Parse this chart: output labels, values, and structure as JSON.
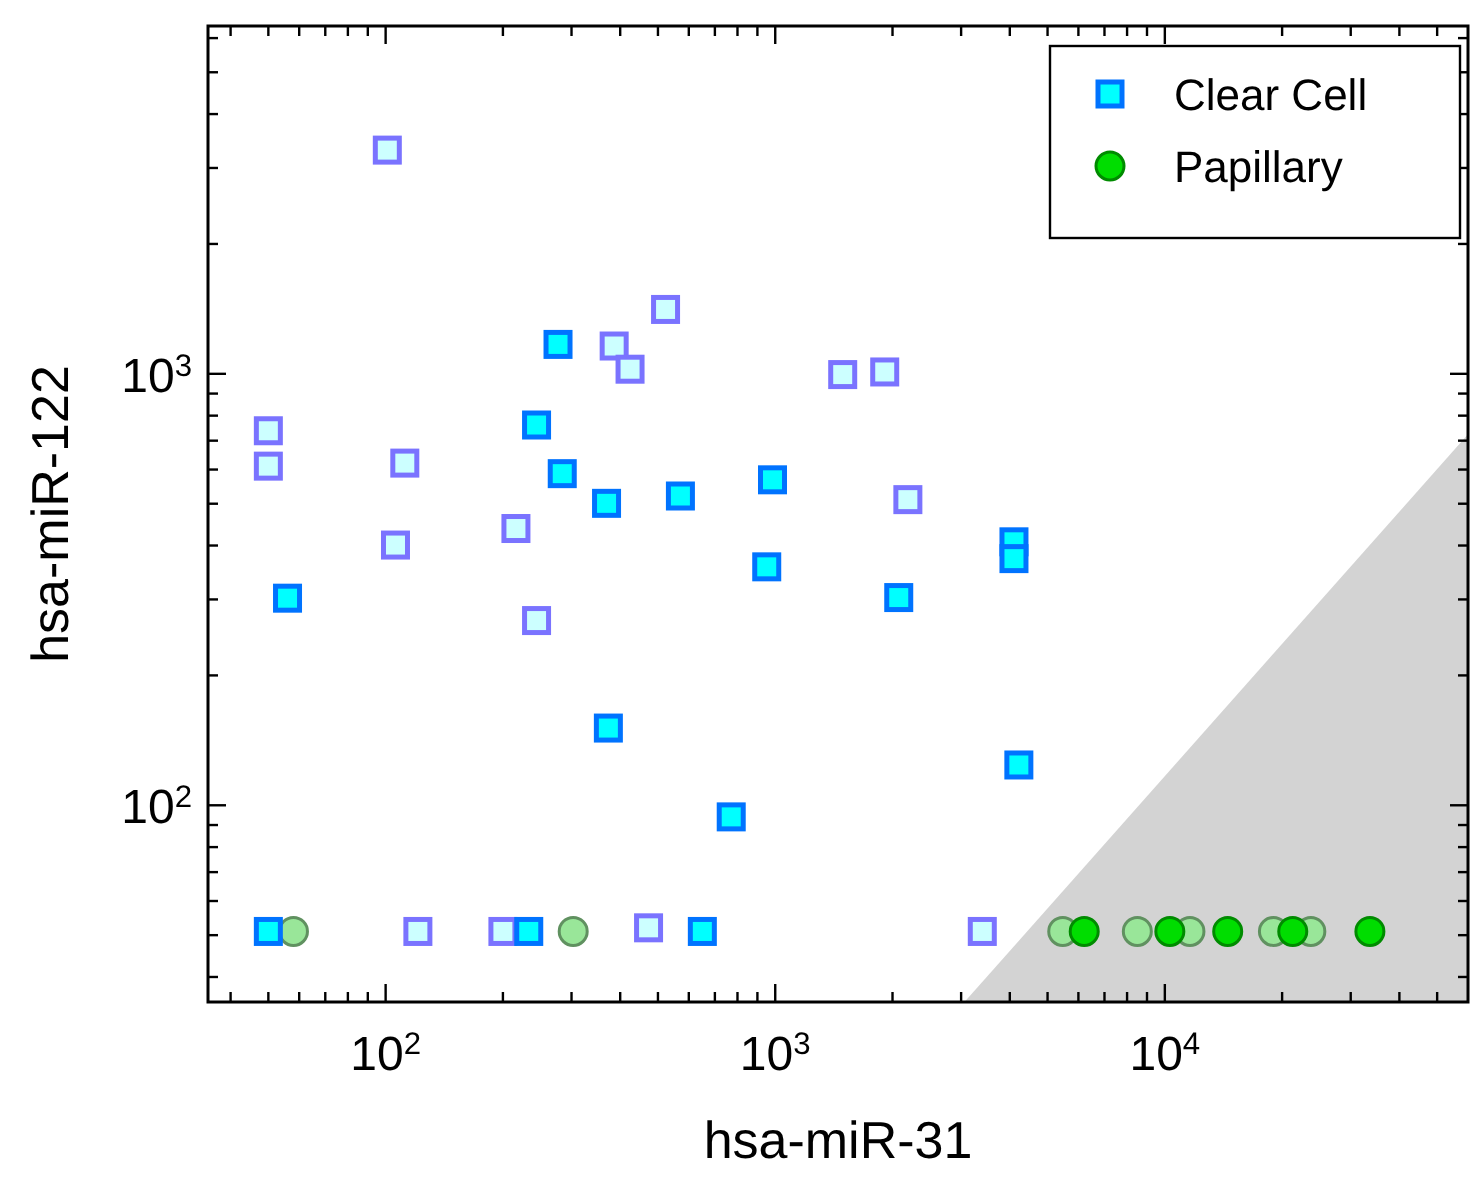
{
  "chart_data": {
    "type": "scatter",
    "xlabel": "hsa-miR-31",
    "ylabel": "hsa-miR-122",
    "log": "xy",
    "xlim": [
      35,
      60000
    ],
    "ylim": [
      35,
      6400
    ],
    "xticks": [
      {
        "value": 40,
        "label": null
      },
      {
        "value": 50,
        "label": null
      },
      {
        "value": 60,
        "label": null
      },
      {
        "value": 70,
        "label": null
      },
      {
        "value": 80,
        "label": null
      },
      {
        "value": 90,
        "label": null
      },
      {
        "value": 100,
        "label": "10$^{2}$"
      },
      {
        "value": 200,
        "label": null
      },
      {
        "value": 300,
        "label": null
      },
      {
        "value": 400,
        "label": null
      },
      {
        "value": 500,
        "label": null
      },
      {
        "value": 600,
        "label": null
      },
      {
        "value": 700,
        "label": null
      },
      {
        "value": 800,
        "label": null
      },
      {
        "value": 900,
        "label": null
      },
      {
        "value": 1000,
        "label": "10$^{3}$"
      },
      {
        "value": 2000,
        "label": null
      },
      {
        "value": 3000,
        "label": null
      },
      {
        "value": 4000,
        "label": null
      },
      {
        "value": 5000,
        "label": null
      },
      {
        "value": 6000,
        "label": null
      },
      {
        "value": 7000,
        "label": null
      },
      {
        "value": 8000,
        "label": null
      },
      {
        "value": 9000,
        "label": null
      },
      {
        "value": 10000,
        "label": "10$^{4}$"
      },
      {
        "value": 20000,
        "label": null
      },
      {
        "value": 30000,
        "label": null
      },
      {
        "value": 40000,
        "label": null
      },
      {
        "value": 50000,
        "label": null
      }
    ],
    "yticks": [
      {
        "value": 40,
        "label": null
      },
      {
        "value": 50,
        "label": null
      },
      {
        "value": 60,
        "label": null
      },
      {
        "value": 70,
        "label": null
      },
      {
        "value": 80,
        "label": null
      },
      {
        "value": 90,
        "label": null
      },
      {
        "value": 100,
        "label": "10$^{2}$"
      },
      {
        "value": 200,
        "label": null
      },
      {
        "value": 300,
        "label": null
      },
      {
        "value": 400,
        "label": null
      },
      {
        "value": 500,
        "label": null
      },
      {
        "value": 600,
        "label": null
      },
      {
        "value": 700,
        "label": null
      },
      {
        "value": 800,
        "label": null
      },
      {
        "value": 900,
        "label": null
      },
      {
        "value": 1000,
        "label": "10$^{3}$"
      },
      {
        "value": 2000,
        "label": null
      },
      {
        "value": 3000,
        "label": null
      },
      {
        "value": 4000,
        "label": null
      },
      {
        "value": 5000,
        "label": null
      },
      {
        "value": 6000,
        "label": null
      }
    ],
    "legend": "top right",
    "grid": false,
    "series": [
      {
        "type": "area",
        "color": "#d3d3d3",
        "x": [
          3060,
          60000
        ],
        "values": [
          35,
          724
        ]
      },
      {
        "color": "#ccffff",
        "marker": "square",
        "x": [
          101,
          386,
          424,
          523,
          1490,
          1910,
          50,
          50,
          112,
          106,
          216,
          2190,
          244,
          121,
          200,
          473,
          3400
        ],
        "values": [
          3300,
          1160,
          1025,
          1410,
          996,
          1010,
          738,
          611,
          621,
          401,
          438,
          511,
          268,
          51,
          51,
          52,
          51
        ]
      },
      {
        "color": "#99e699",
        "marker": "circle",
        "x": [
          58,
          303,
          5470,
          8500,
          11600,
          19000,
          23700
        ],
        "values": [
          51,
          51,
          51,
          51,
          51,
          51,
          51
        ]
      },
      {
        "name": "Clear Cell",
        "color": "#00ffff",
        "marker": "square",
        "x": [
          277,
          244,
          284,
          369,
          571,
          984,
          951,
          4100,
          4100,
          56,
          2075,
          373,
          4220,
          771,
          50,
          233,
          650
        ],
        "values": [
          1170,
          761,
          587,
          501,
          521,
          568,
          357,
          408,
          373,
          302,
          303,
          151,
          124,
          94,
          51,
          51,
          51
        ]
      },
      {
        "name": "Papillary",
        "color": "#00dd00",
        "marker": "circle",
        "x": [
          6210,
          10300,
          14500,
          21300,
          33600
        ],
        "values": [
          51,
          51,
          51,
          51,
          51
        ]
      }
    ]
  }
}
